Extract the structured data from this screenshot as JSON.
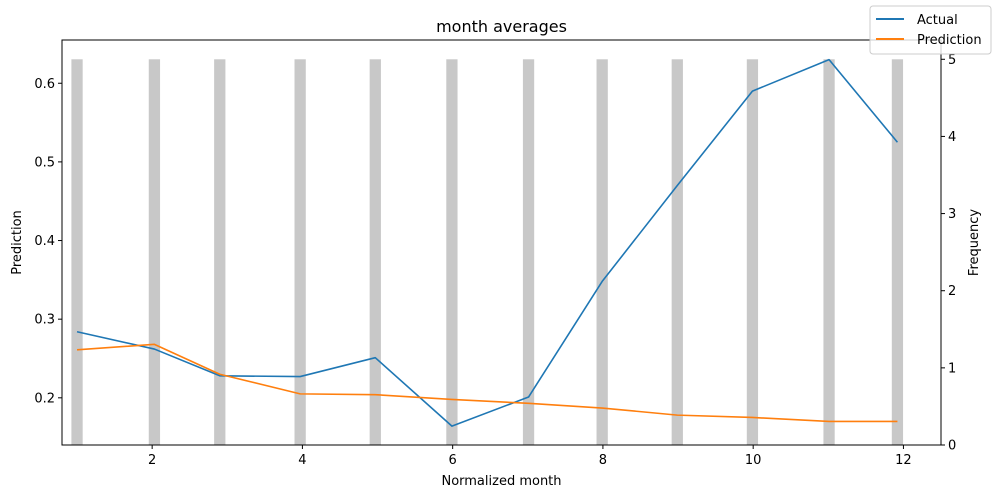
{
  "chart_data": {
    "type": "line",
    "title": "month averages",
    "xlabel": "Normalized month",
    "ylabel": "Prediction",
    "y2label": "Frequency",
    "xlim": [
      0.8,
      12.5
    ],
    "ylim": [
      0.14,
      0.655
    ],
    "y2lim": [
      0,
      5.25
    ],
    "xticks": [
      2,
      4,
      6,
      8,
      10,
      12
    ],
    "yticks": [
      0.2,
      0.3,
      0.4,
      0.5,
      0.6
    ],
    "y2ticks": [
      0,
      1,
      2,
      3,
      4,
      5
    ],
    "grid": false,
    "legend_position": "top-right",
    "series": [
      {
        "name": "Actual",
        "color": "#1f77b4",
        "x": [
          1.0,
          2.03,
          2.9,
          3.97,
          4.97,
          5.99,
          7.01,
          7.99,
          8.99,
          9.99,
          11.01,
          11.92
        ],
        "values": [
          0.284,
          0.262,
          0.228,
          0.227,
          0.251,
          0.164,
          0.201,
          0.348,
          0.47,
          0.59,
          0.63,
          0.525
        ]
      },
      {
        "name": "Prediction",
        "color": "#ff7f0e",
        "x": [
          1.0,
          2.03,
          2.9,
          3.97,
          4.97,
          5.99,
          7.01,
          7.99,
          8.99,
          9.99,
          11.01,
          11.92
        ],
        "values": [
          0.261,
          0.268,
          0.23,
          0.205,
          0.204,
          0.198,
          0.193,
          0.187,
          0.178,
          0.175,
          0.17,
          0.17
        ]
      }
    ],
    "histogram": {
      "axis": "y2",
      "color": "#c8c8c8",
      "bin_width": 0.15,
      "x": [
        1.0,
        2.03,
        2.9,
        3.97,
        4.97,
        5.99,
        7.01,
        7.99,
        8.99,
        9.99,
        11.01,
        11.92
      ],
      "values": [
        5,
        5,
        5,
        5,
        5,
        5,
        5,
        5,
        5,
        5,
        5,
        5
      ]
    }
  }
}
